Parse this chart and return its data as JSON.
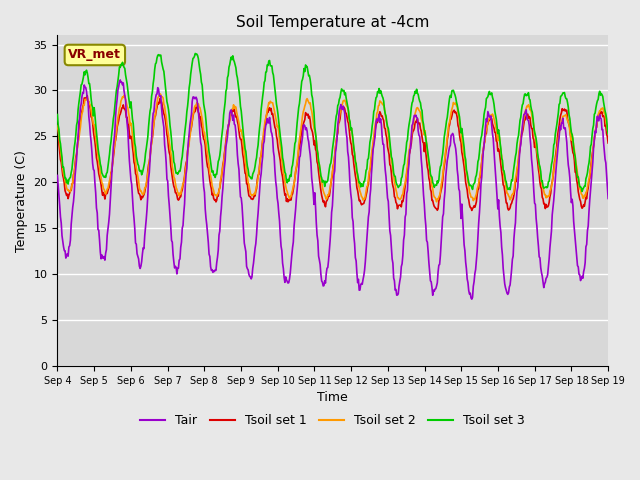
{
  "title": "Soil Temperature at -4cm",
  "xlabel": "Time",
  "ylabel": "Temperature (C)",
  "ylim": [
    0,
    36
  ],
  "yticks": [
    0,
    5,
    10,
    15,
    20,
    25,
    30,
    35
  ],
  "x_labels": [
    "Sep 4",
    "Sep 5",
    "Sep 6",
    "Sep 7",
    "Sep 8",
    "Sep 9",
    "Sep 10",
    "Sep 11",
    "Sep 12",
    "Sep 13",
    "Sep 14",
    "Sep 15",
    "Sep 16",
    "Sep 17",
    "Sep 18",
    "Sep 19"
  ],
  "colors": {
    "Tair": "#9900cc",
    "Tsoil1": "#dd0000",
    "Tsoil2": "#ff9900",
    "Tsoil3": "#00cc00"
  },
  "background_color": "#e8e8e8",
  "plot_bg_color": "#d8d8d8",
  "grid_color": "#ffffff",
  "annotation_box_color": "#ffff99",
  "annotation_text": "VR_met",
  "annotation_text_color": "#880000",
  "n_days": 15,
  "points_per_day": 48,
  "legend_labels": [
    "Tair",
    "Tsoil set 1",
    "Tsoil set 2",
    "Tsoil set 3"
  ]
}
